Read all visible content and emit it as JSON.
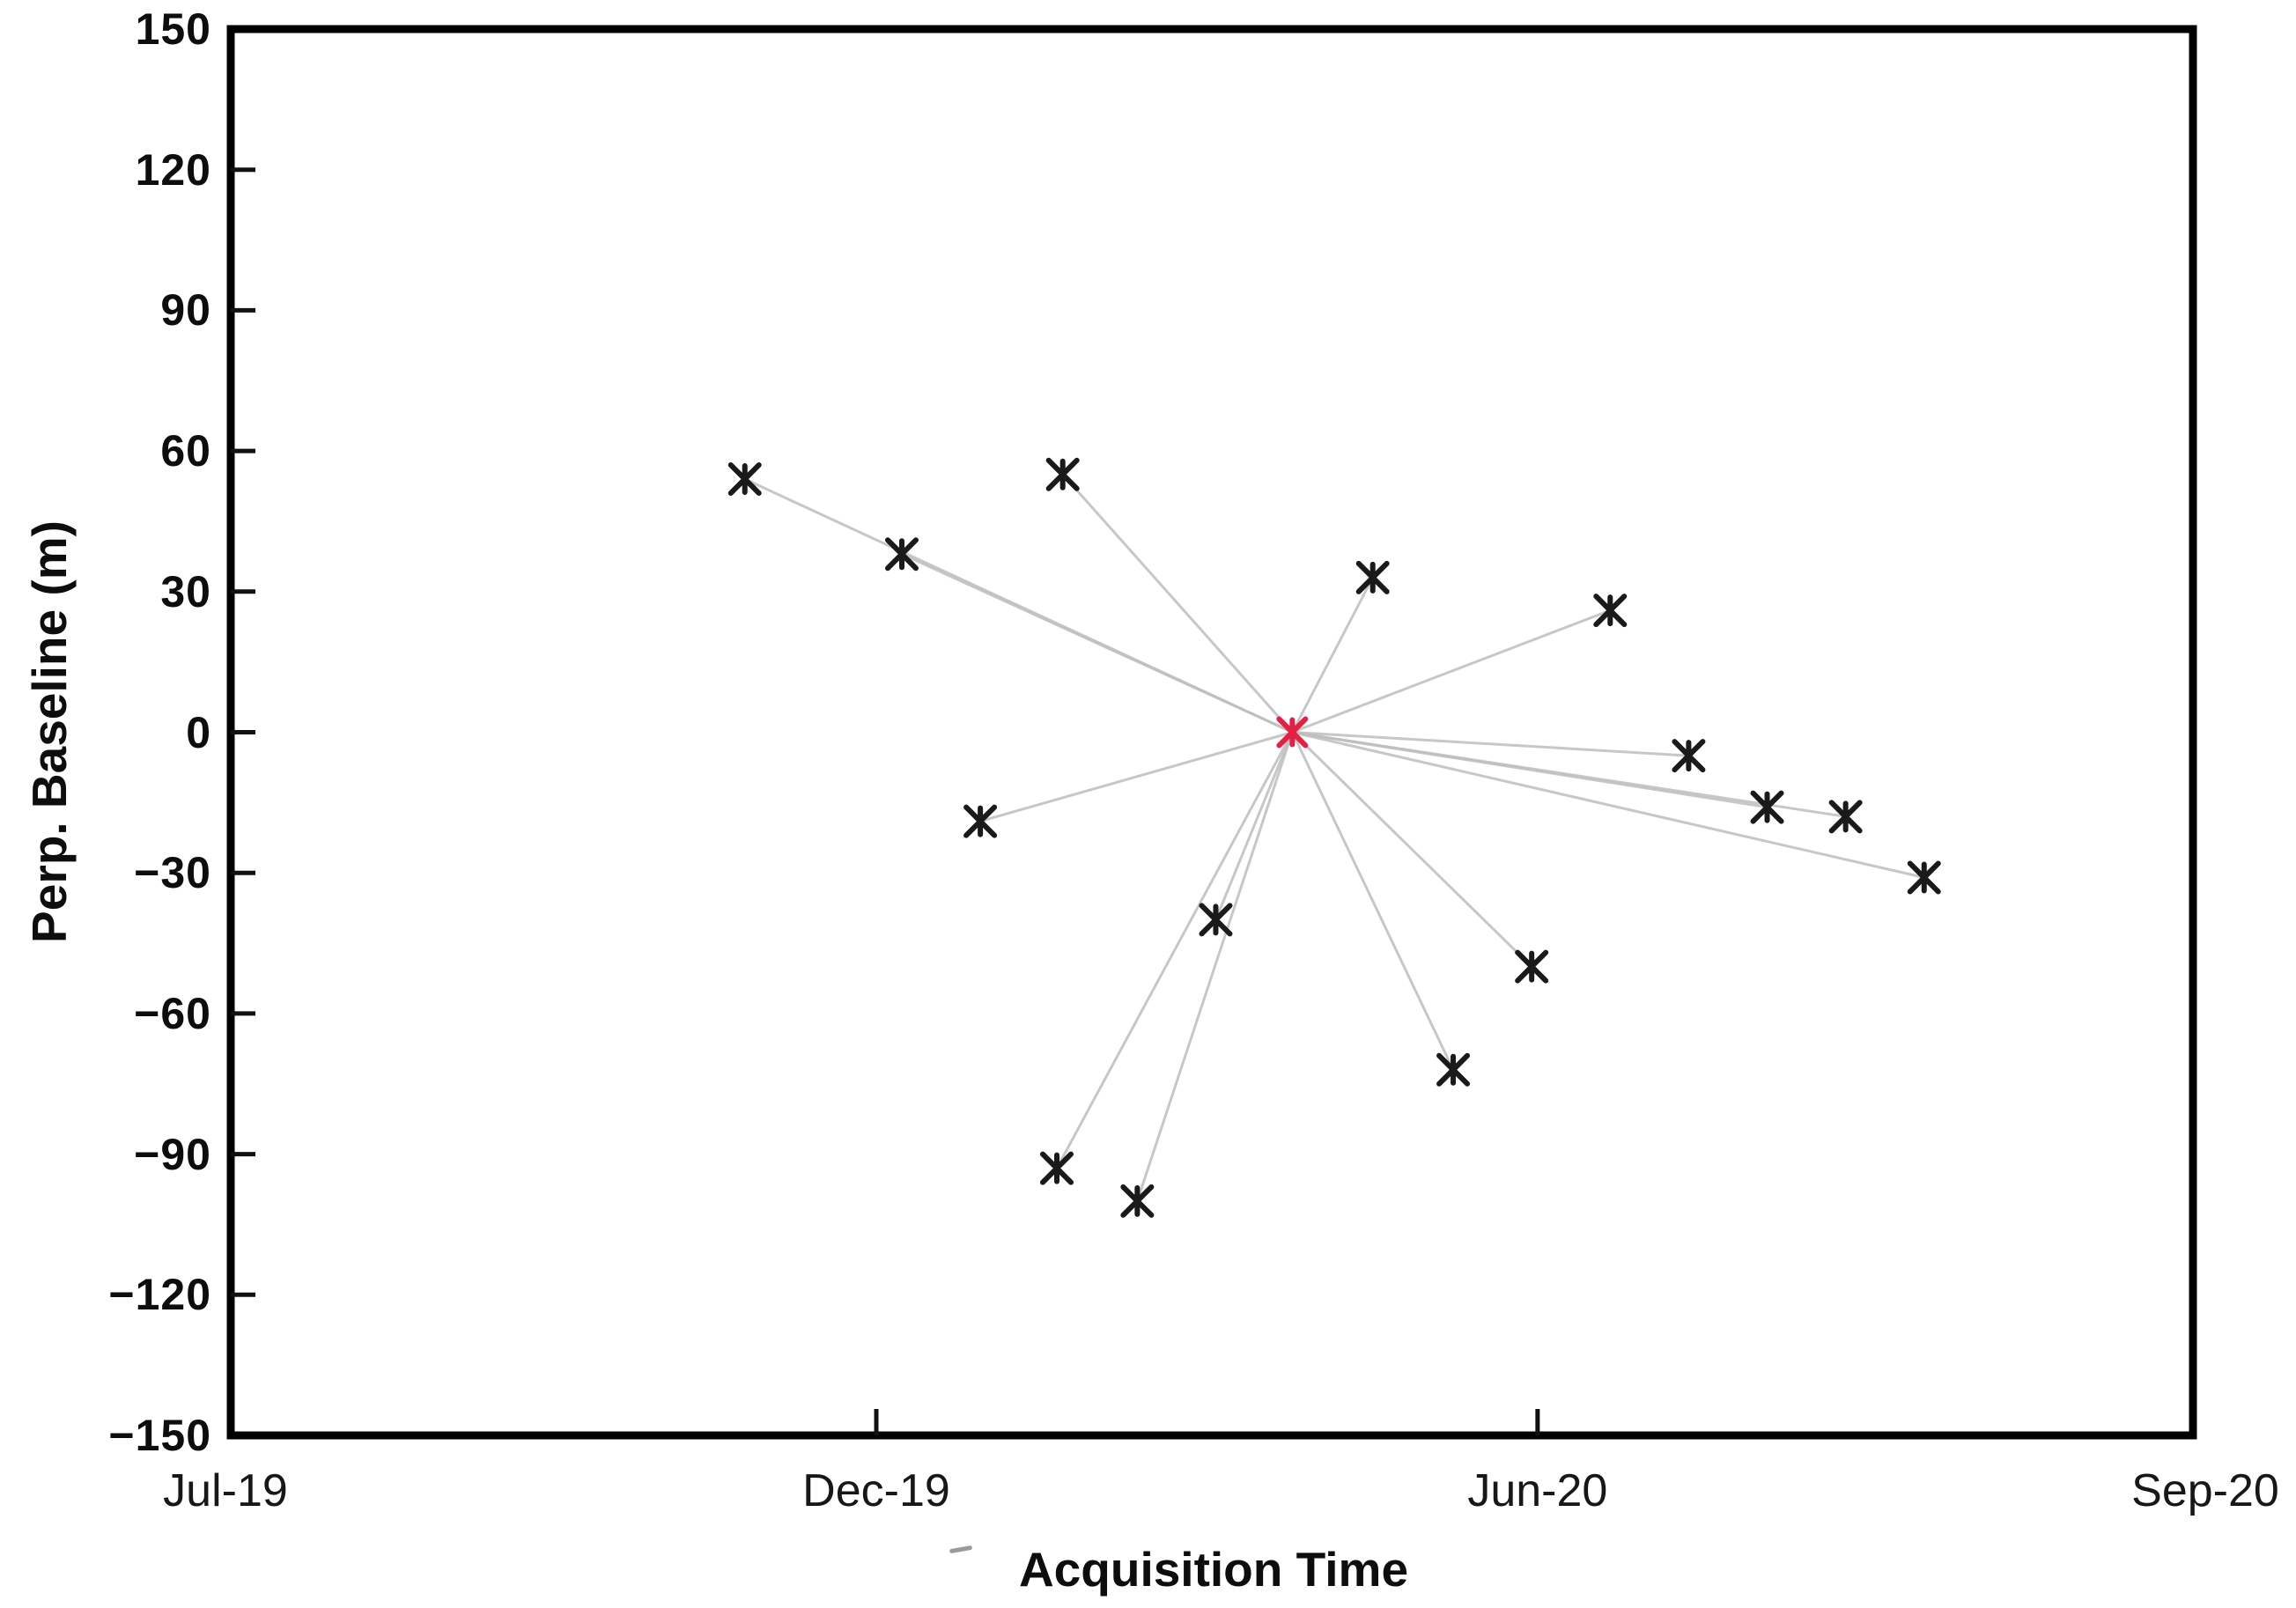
{
  "figure": {
    "background": "#ffffff",
    "colors": {
      "axis": "#000000",
      "marker": "#1a1a1a",
      "master_marker": "#e02245",
      "baseline_line": "#bdbdbd",
      "tick": "#111111"
    }
  },
  "chart_data": {
    "type": "scatter",
    "title": "",
    "xlabel": "Acquisition Time",
    "ylabel": "Perp. Baseline (m)",
    "ylim": [
      -150,
      150
    ],
    "grid": false,
    "legend": "none",
    "description": "Spider/star baseline plot: slave acquisitions (black asterisks) connected by gray lines to the master acquisition (red asterisk) at perpendicular baseline 0 m.",
    "y_ticks": [
      {
        "label": "150",
        "value": 150
      },
      {
        "label": "120",
        "value": 120
      },
      {
        "label": "90",
        "value": 90
      },
      {
        "label": "60",
        "value": 60
      },
      {
        "label": "30",
        "value": 30
      },
      {
        "label": "0",
        "value": 0
      },
      {
        "label": "−30",
        "value": -30
      },
      {
        "label": "−60",
        "value": -60
      },
      {
        "label": "−90",
        "value": -90
      },
      {
        "label": "−120",
        "value": -120
      },
      {
        "label": "−150",
        "value": -150
      }
    ],
    "x_ticks": [
      {
        "label": "Jul-19",
        "frac": 0
      },
      {
        "label": "Dec-19",
        "frac": 0.329
      },
      {
        "label": "Jun-20",
        "frac": 0.666
      },
      {
        "label": "Sep-20",
        "frac": 1
      }
    ],
    "master": {
      "date": "Mar-20",
      "baseline_m": 0,
      "x_frac": 0.541
    },
    "points": [
      {
        "date": "Nov-19",
        "baseline_m": 54,
        "x_frac": 0.262
      },
      {
        "date": "Dec-19",
        "baseline_m": 38,
        "x_frac": 0.342
      },
      {
        "date": "Jan-20",
        "baseline_m": -19,
        "x_frac": 0.382
      },
      {
        "date": "Jan-20",
        "baseline_m": -93,
        "x_frac": 0.421
      },
      {
        "date": "Jan-20",
        "baseline_m": 55,
        "x_frac": 0.424
      },
      {
        "date": "Feb-20",
        "baseline_m": -100,
        "x_frac": 0.462
      },
      {
        "date": "Mar-20",
        "baseline_m": -40,
        "x_frac": 0.502
      },
      {
        "date": "Apr-20",
        "baseline_m": 33,
        "x_frac": 0.582
      },
      {
        "date": "May-20",
        "baseline_m": -72,
        "x_frac": 0.623
      },
      {
        "date": "May-20",
        "baseline_m": -50,
        "x_frac": 0.663
      },
      {
        "date": "Jun-20",
        "baseline_m": 26,
        "x_frac": 0.703
      },
      {
        "date": "Jun-20",
        "baseline_m": -5,
        "x_frac": 0.743
      },
      {
        "date": "Jul-20",
        "baseline_m": -16,
        "x_frac": 0.783
      },
      {
        "date": "Jul-20",
        "baseline_m": -18,
        "x_frac": 0.823
      },
      {
        "date": "Jul-20",
        "baseline_m": -31,
        "x_frac": 0.863
      }
    ]
  }
}
